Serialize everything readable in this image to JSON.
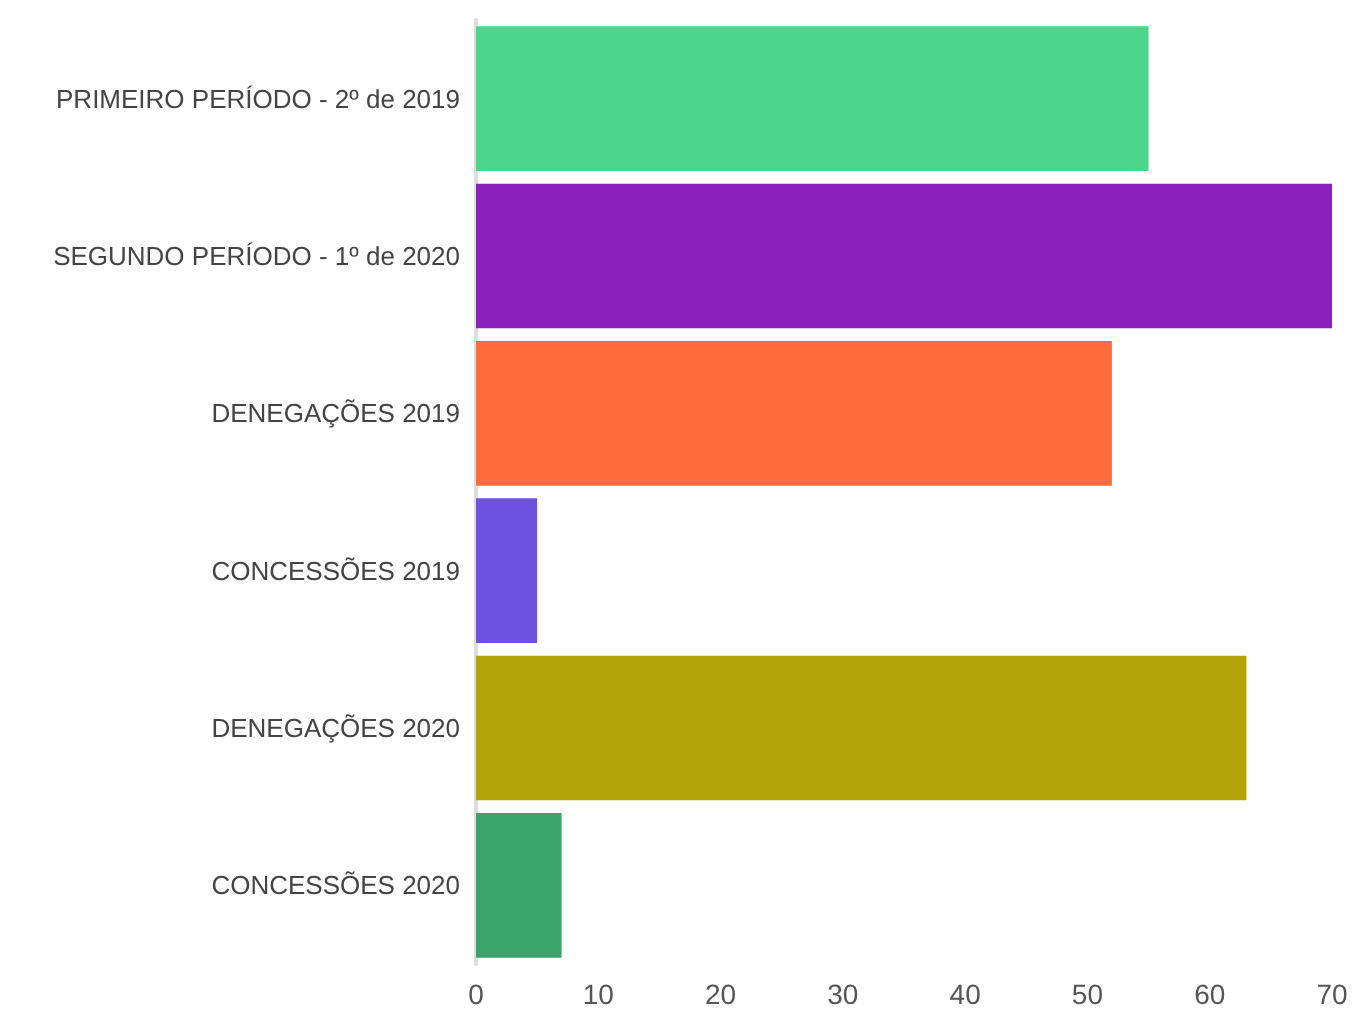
{
  "chart_data": {
    "type": "bar",
    "orientation": "horizontal",
    "categories": [
      "PRIMEIRO PERÍODO - 2º de 2019",
      "SEGUNDO PERÍODO - 1º de 2020",
      "DENEGAÇÕES 2019",
      "CONCESSÕES 2019",
      "DENEGAÇÕES 2020",
      "CONCESSÕES 2020"
    ],
    "values": [
      55,
      70,
      52,
      5,
      63,
      7
    ],
    "colors": [
      "#4cd68c",
      "#8a21bc",
      "#ff6b3b",
      "#6c52de",
      "#b2a309",
      "#3aa46b"
    ],
    "xlim": [
      0,
      70
    ],
    "xticks": [
      0,
      10,
      20,
      30,
      40,
      50,
      60,
      70
    ]
  }
}
